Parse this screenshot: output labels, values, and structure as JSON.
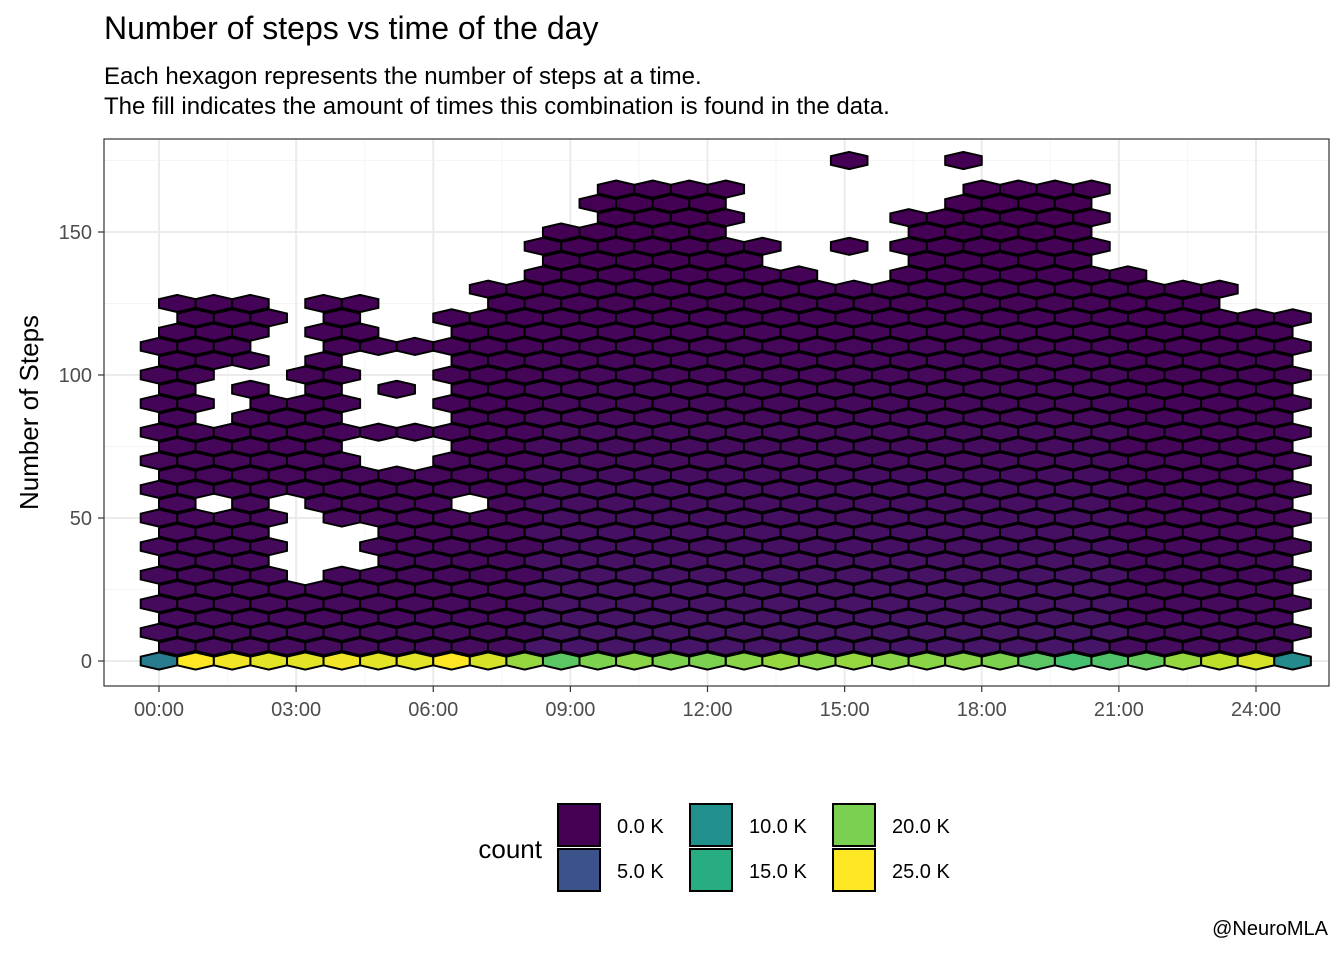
{
  "title": "Number of steps vs time of the day",
  "subtitle": [
    "Each hexagon represents the number of steps at a time.",
    "The fill indicates the amount of times this combination is found in the data."
  ],
  "caption": "@NeuroMLA",
  "chart_data": {
    "type": "heatmap",
    "subtype": "hexbin",
    "xlabel": "",
    "ylabel": "Number of Steps",
    "x_unit": "hours",
    "x_ticks": [
      0,
      3,
      6,
      9,
      12,
      15,
      18,
      21,
      24
    ],
    "x_tick_labels": [
      "00:00",
      "03:00",
      "06:00",
      "09:00",
      "12:00",
      "15:00",
      "18:00",
      "21:00",
      "24:00"
    ],
    "xlim": [
      -1.2,
      25.6
    ],
    "y_ticks": [
      0,
      50,
      100,
      150
    ],
    "ylim": [
      -8,
      182
    ],
    "hex_dx_hours": 0.8,
    "hex_dy_steps": 5,
    "row_y": [
      0,
      5,
      10,
      15,
      20,
      25,
      30,
      35,
      40,
      45,
      50,
      55,
      60,
      65,
      70,
      75,
      80,
      85,
      90,
      95,
      100,
      105,
      110,
      115,
      120,
      125,
      130,
      135,
      140,
      145,
      150,
      155,
      160,
      165,
      170,
      175
    ],
    "row_x_start": [
      0,
      0.4
    ],
    "grid_string_key": "Rows listed bottom (y=0) to top (y=175). Each character is one hexagon column; '.' means empty, digits are count levels.",
    "rows": [
      "12222222222111111111111111111111111111111111111111111111111111112222222222221",
      "",
      "0000000000000000000000000000000000000000000000000000000000000000000000000000000000000000000000000000000000000000000000000000000000000000000000000000000000"
    ],
    "bottom_row_counts_K": [
      10.5,
      25.0,
      24.5,
      24.0,
      24.0,
      24.5,
      24.0,
      24.0,
      25.0,
      23.5,
      21.0,
      18.5,
      20.0,
      20.5,
      20.0,
      20.0,
      20.5,
      21.0,
      20.5,
      21.0,
      20.5,
      20.5,
      20.5,
      20.0,
      18.5,
      17.5,
      18.0,
      19.0,
      21.0,
      22.5,
      23.5,
      12.0
    ],
    "legend": {
      "title": "count",
      "position": "bottom",
      "entries": [
        {
          "label": "0.0 K",
          "color": "#440154"
        },
        {
          "label": "5.0 K",
          "color": "#3b528b"
        },
        {
          "label": "10.0 K",
          "color": "#21908c"
        },
        {
          "label": "15.0 K",
          "color": "#27ad81"
        },
        {
          "label": "20.0 K",
          "color": "#7ad151"
        },
        {
          "label": "25.0 K",
          "color": "#fde725"
        }
      ]
    },
    "colors": {
      "low": "#440154",
      "high": "#fde725",
      "hex_stroke": "#000000",
      "panel_border": "#333333",
      "grid_major": "#ebebeb",
      "grid_minor": "#f5f5f5",
      "tick_text": "#4d4d4d"
    },
    "theme": "bw",
    "grid": true
  }
}
